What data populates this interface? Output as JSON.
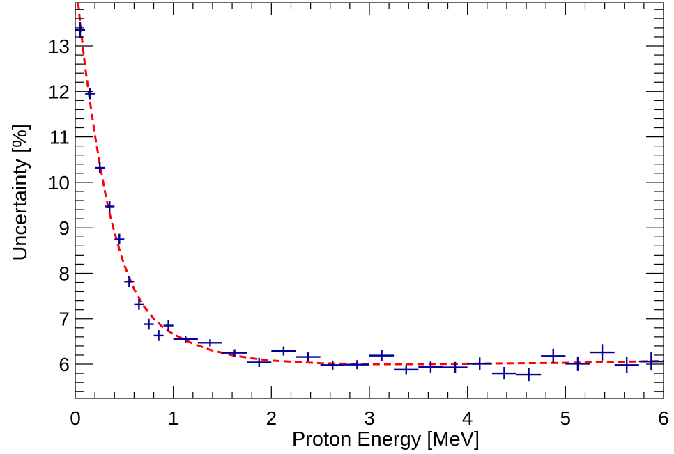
{
  "chart_data": {
    "type": "scatter",
    "title": "",
    "xlabel": "Proton Energy [MeV]",
    "ylabel": "Uncertainty [%]",
    "xlim": [
      0,
      6
    ],
    "ylim": [
      5.25,
      13.95
    ],
    "x_ticks": [
      "0",
      "1",
      "2",
      "3",
      "4",
      "5",
      "6"
    ],
    "y_ticks": [
      "6",
      "7",
      "8",
      "9",
      "10",
      "11",
      "12",
      "13"
    ],
    "grid": false,
    "legend": "none",
    "colors": {
      "points": "#000099",
      "fit": "#ff0000",
      "axes": "#000000"
    },
    "series": [
      {
        "kind": "points-with-errors",
        "points": [
          {
            "x": 0.05,
            "y": 13.35,
            "xerr": 0.05,
            "yerr": 0.18
          },
          {
            "x": 0.15,
            "y": 11.95,
            "xerr": 0.05,
            "yerr": 0.12
          },
          {
            "x": 0.25,
            "y": 10.32,
            "xerr": 0.05,
            "yerr": 0.12
          },
          {
            "x": 0.35,
            "y": 9.47,
            "xerr": 0.05,
            "yerr": 0.12
          },
          {
            "x": 0.45,
            "y": 8.75,
            "xerr": 0.05,
            "yerr": 0.12
          },
          {
            "x": 0.55,
            "y": 7.82,
            "xerr": 0.05,
            "yerr": 0.12
          },
          {
            "x": 0.65,
            "y": 7.32,
            "xerr": 0.05,
            "yerr": 0.12
          },
          {
            "x": 0.75,
            "y": 6.88,
            "xerr": 0.05,
            "yerr": 0.12
          },
          {
            "x": 0.85,
            "y": 6.63,
            "xerr": 0.05,
            "yerr": 0.12
          },
          {
            "x": 0.95,
            "y": 6.85,
            "xerr": 0.05,
            "yerr": 0.12
          },
          {
            "x": 1.125,
            "y": 6.55,
            "xerr": 0.125,
            "yerr": 0.08
          },
          {
            "x": 1.375,
            "y": 6.47,
            "xerr": 0.125,
            "yerr": 0.08
          },
          {
            "x": 1.625,
            "y": 6.25,
            "xerr": 0.125,
            "yerr": 0.08
          },
          {
            "x": 1.875,
            "y": 6.04,
            "xerr": 0.125,
            "yerr": 0.1
          },
          {
            "x": 2.125,
            "y": 6.29,
            "xerr": 0.125,
            "yerr": 0.1
          },
          {
            "x": 2.375,
            "y": 6.16,
            "xerr": 0.125,
            "yerr": 0.1
          },
          {
            "x": 2.625,
            "y": 5.98,
            "xerr": 0.125,
            "yerr": 0.1
          },
          {
            "x": 2.875,
            "y": 5.99,
            "xerr": 0.125,
            "yerr": 0.1
          },
          {
            "x": 3.125,
            "y": 6.19,
            "xerr": 0.125,
            "yerr": 0.12
          },
          {
            "x": 3.375,
            "y": 5.88,
            "xerr": 0.125,
            "yerr": 0.1
          },
          {
            "x": 3.625,
            "y": 5.94,
            "xerr": 0.125,
            "yerr": 0.12
          },
          {
            "x": 3.875,
            "y": 5.93,
            "xerr": 0.125,
            "yerr": 0.12
          },
          {
            "x": 4.125,
            "y": 6.01,
            "xerr": 0.125,
            "yerr": 0.14
          },
          {
            "x": 4.375,
            "y": 5.8,
            "xerr": 0.125,
            "yerr": 0.14
          },
          {
            "x": 4.625,
            "y": 5.77,
            "xerr": 0.125,
            "yerr": 0.14
          },
          {
            "x": 4.875,
            "y": 6.18,
            "xerr": 0.125,
            "yerr": 0.16
          },
          {
            "x": 5.125,
            "y": 6.01,
            "xerr": 0.125,
            "yerr": 0.16
          },
          {
            "x": 5.375,
            "y": 6.26,
            "xerr": 0.125,
            "yerr": 0.18
          },
          {
            "x": 5.625,
            "y": 5.98,
            "xerr": 0.125,
            "yerr": 0.18
          },
          {
            "x": 5.875,
            "y": 6.06,
            "xerr": 0.125,
            "yerr": 0.2
          }
        ]
      },
      {
        "kind": "fit-curve-dashed",
        "points": [
          {
            "x": 0.03,
            "y": 13.95
          },
          {
            "x": 0.05,
            "y": 13.5
          },
          {
            "x": 0.1,
            "y": 12.55
          },
          {
            "x": 0.15,
            "y": 11.78
          },
          {
            "x": 0.2,
            "y": 11.05
          },
          {
            "x": 0.25,
            "y": 10.4
          },
          {
            "x": 0.3,
            "y": 9.82
          },
          {
            "x": 0.35,
            "y": 9.32
          },
          {
            "x": 0.4,
            "y": 8.9
          },
          {
            "x": 0.45,
            "y": 8.52
          },
          {
            "x": 0.5,
            "y": 8.18
          },
          {
            "x": 0.6,
            "y": 7.65
          },
          {
            "x": 0.7,
            "y": 7.27
          },
          {
            "x": 0.8,
            "y": 7.0
          },
          {
            "x": 0.9,
            "y": 6.8
          },
          {
            "x": 1.0,
            "y": 6.66
          },
          {
            "x": 1.2,
            "y": 6.45
          },
          {
            "x": 1.4,
            "y": 6.3
          },
          {
            "x": 1.6,
            "y": 6.2
          },
          {
            "x": 1.8,
            "y": 6.13
          },
          {
            "x": 2.0,
            "y": 6.08
          },
          {
            "x": 2.5,
            "y": 6.02
          },
          {
            "x": 3.0,
            "y": 6.0
          },
          {
            "x": 3.5,
            "y": 6.0
          },
          {
            "x": 4.0,
            "y": 6.01
          },
          {
            "x": 4.5,
            "y": 6.02
          },
          {
            "x": 5.0,
            "y": 6.03
          },
          {
            "x": 5.5,
            "y": 6.05
          },
          {
            "x": 6.0,
            "y": 6.07
          }
        ]
      }
    ]
  }
}
